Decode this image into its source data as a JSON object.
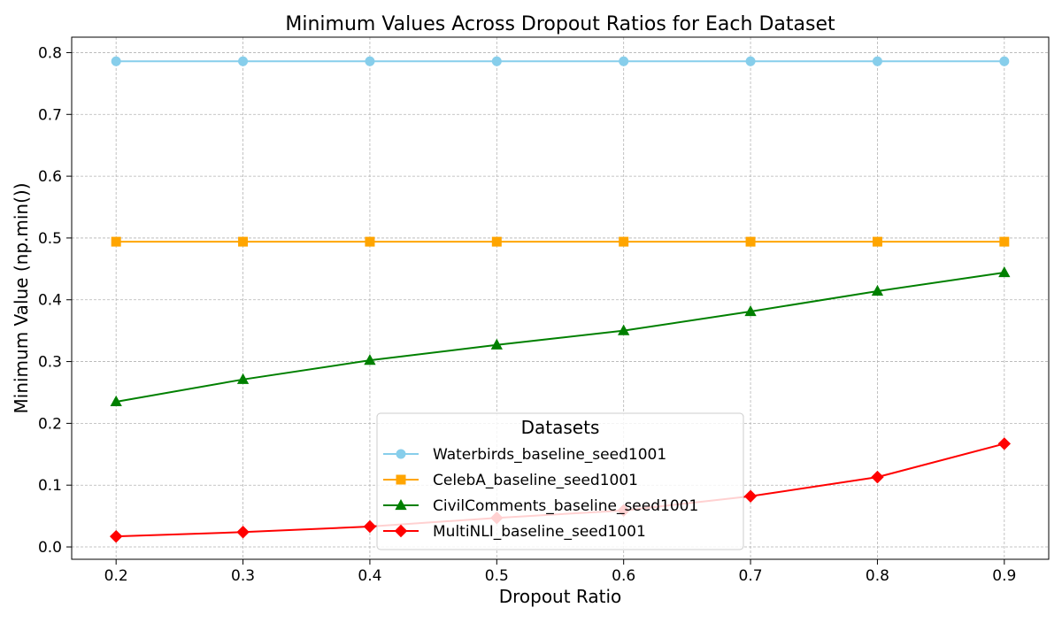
{
  "chart_data": {
    "type": "line",
    "title": "Minimum Values Across Dropout Ratios for Each Dataset",
    "xlabel": "Dropout Ratio",
    "ylabel": "Minimum Value (np.min())",
    "x": [
      0.2,
      0.3,
      0.4,
      0.5,
      0.6,
      0.7,
      0.8,
      0.9
    ],
    "x_ticks": [
      "0.2",
      "0.3",
      "0.4",
      "0.5",
      "0.6",
      "0.7",
      "0.8",
      "0.9"
    ],
    "xlim": [
      0.165,
      0.935
    ],
    "ylim": [
      -0.02,
      0.825
    ],
    "y_ticks": [
      "0.0",
      "0.1",
      "0.2",
      "0.3",
      "0.4",
      "0.5",
      "0.6",
      "0.7",
      "0.8"
    ],
    "grid": true,
    "legend": {
      "title": "Datasets",
      "placement": "lower-center"
    },
    "series": [
      {
        "name": "Waterbirds_baseline_seed1001",
        "color": "#87ceeb",
        "marker": "circle",
        "values": [
          0.786,
          0.786,
          0.786,
          0.786,
          0.786,
          0.786,
          0.786,
          0.786
        ]
      },
      {
        "name": "CelebA_baseline_seed1001",
        "color": "#ffa500",
        "marker": "square",
        "values": [
          0.494,
          0.494,
          0.494,
          0.494,
          0.494,
          0.494,
          0.494,
          0.494
        ]
      },
      {
        "name": "CivilComments_baseline_seed1001",
        "color": "#008000",
        "marker": "triangle",
        "values": [
          0.235,
          0.271,
          0.302,
          0.327,
          0.35,
          0.381,
          0.414,
          0.444
        ]
      },
      {
        "name": "MultiNLI_baseline_seed1001",
        "color": "#ff0000",
        "marker": "diamond",
        "values": [
          0.017,
          0.024,
          0.033,
          0.047,
          0.059,
          0.082,
          0.113,
          0.167
        ]
      }
    ]
  }
}
